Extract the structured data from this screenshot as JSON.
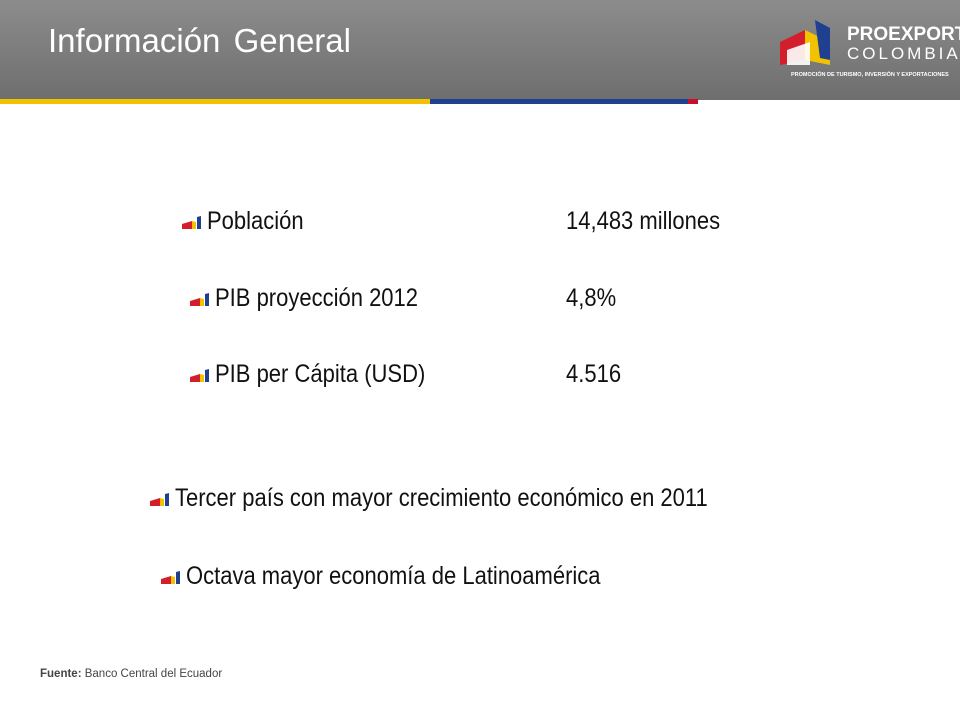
{
  "header": {
    "title": "Información General",
    "logo": {
      "name": "PROEXPORT",
      "country": "COLOMBIA",
      "tagline": "PROMOCIÓN DE TURISMO, INVERSIÓN Y EXPORTACIONES"
    }
  },
  "indicators": [
    {
      "label": "Población",
      "value": "14,483 millones"
    },
    {
      "label": "PIB proyección 2012",
      "value": "4,8%"
    },
    {
      "label": "PIB per Cápita (USD)",
      "value": "4.516"
    }
  ],
  "facts": [
    "Tercer país con mayor crecimiento económico en 2011",
    "Octava mayor economía de Latinoamérica"
  ],
  "footer": {
    "source_label": "Fuente:",
    "source": "Banco Central del Ecuador"
  }
}
